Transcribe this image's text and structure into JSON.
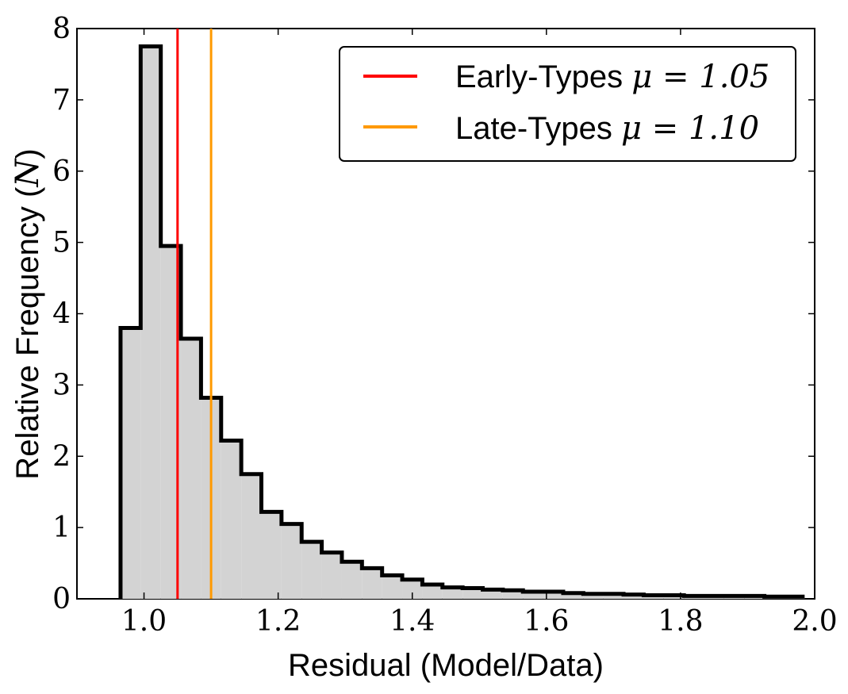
{
  "chart_data": {
    "type": "histogram",
    "xlabel": "Residual (Model/Data)",
    "ylabel_prefix": "Relative Frequency (",
    "ylabel_symbol": "N",
    "ylabel_suffix": ")",
    "xlim": [
      0.9,
      2.0
    ],
    "ylim": [
      0,
      8
    ],
    "x_ticks": [
      1.0,
      1.2,
      1.4,
      1.6,
      1.8,
      2.0
    ],
    "x_tick_labels": [
      "1.0",
      "1.2",
      "1.4",
      "1.6",
      "1.8",
      "2.0"
    ],
    "y_ticks": [
      0,
      1,
      2,
      3,
      4,
      5,
      6,
      7,
      8
    ],
    "y_tick_labels": [
      "0",
      "1",
      "2",
      "3",
      "4",
      "5",
      "6",
      "7",
      "8"
    ],
    "bin_start": 0.965,
    "bin_width": 0.03,
    "values": [
      3.8,
      7.75,
      4.95,
      3.65,
      2.82,
      2.22,
      1.75,
      1.22,
      1.05,
      0.8,
      0.65,
      0.52,
      0.43,
      0.33,
      0.27,
      0.2,
      0.16,
      0.15,
      0.13,
      0.12,
      0.1,
      0.1,
      0.08,
      0.07,
      0.07,
      0.06,
      0.05,
      0.05,
      0.04,
      0.04,
      0.04,
      0.04,
      0.03,
      0.03
    ],
    "fill_color": "#d3d3d3",
    "edge_color": "#000000",
    "vlines": [
      {
        "name": "Early-Types",
        "x": 1.05,
        "color": "#ff0000",
        "label": "Early-Types",
        "mu_text": "μ = 1.05"
      },
      {
        "name": "Late-Types",
        "x": 1.1,
        "color": "#ff9900",
        "label": "Late-Types",
        "mu_text": "μ = 1.10"
      }
    ],
    "legend_position": "top-right"
  }
}
